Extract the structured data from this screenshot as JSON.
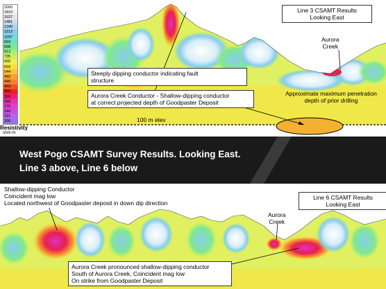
{
  "legend": {
    "values": [
      "2000",
      "1810",
      "1637",
      "1481",
      "1340",
      "1213",
      "1097",
      "993",
      "898",
      "813",
      "735",
      "665",
      "602",
      "544",
      "492",
      "445",
      "403",
      "365",
      "330",
      "299",
      "270",
      "244",
      "221",
      "200"
    ],
    "colors": [
      "#ffffff",
      "#f4f4f4",
      "#e4e4e4",
      "#c8dcf0",
      "#a8d4f0",
      "#88ccee",
      "#78d8e8",
      "#70e0c0",
      "#80e890",
      "#a8f070",
      "#d0f060",
      "#f0f050",
      "#f8e040",
      "#f8c838",
      "#f8a030",
      "#f88028",
      "#f05028",
      "#e82020",
      "#e8207a",
      "#e830b0",
      "#e040d0",
      "#c850e0",
      "#b068e8",
      "#9870f0"
    ],
    "title": "Resistivity",
    "unit": "ohm-m"
  },
  "top_section": {
    "title_box": [
      "Line 3 CSAMT Results",
      "Looking East"
    ],
    "aurora_label": [
      "Aurora",
      "Creek"
    ],
    "fault_box": [
      "Steeply dipping conductor indicating fault",
      "structure"
    ],
    "shallow_box": [
      "Aurora Creek Conductor  - Shallow-dipping  conductor",
      "at correct projected depth of Goodpaster Deposit"
    ],
    "penetration_label": [
      "Approximate maximum  penetration",
      "depth of prior drilling"
    ],
    "elevation_label": "100 m elev"
  },
  "banner": {
    "line1": "West Pogo CSAMT Survey Results.  Looking East.",
    "line2": "Line 3 above, Line 6 below"
  },
  "bottom_section": {
    "conductor_label": [
      "Shallow-dipping  Conductor",
      "Coincident  mag low",
      "Located northwest of Goodpaster deposit in down dip direction"
    ],
    "title_box": [
      "Line 6 CSAMT Results",
      "Looking East"
    ],
    "aurora_label": [
      "Aurora",
      "Creek"
    ],
    "pronounced_box": [
      "Aurora Creek pronounced  shallow-dipping  conductor",
      "South of Aurora Creek, Coincident mag low",
      "On strike from Goodpaster Deposit"
    ]
  },
  "colors": {
    "banner_bg": "#1a1a1a",
    "banner_text": "#ffffff"
  }
}
